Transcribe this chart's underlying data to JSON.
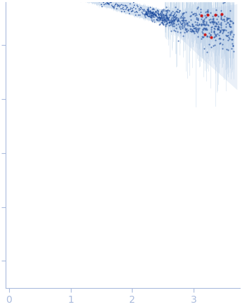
{
  "title": "",
  "background_color": "#ffffff",
  "point_color_blue": "#1a4a9e",
  "point_color_red": "#cc1111",
  "errorband_color": "#bad0e8",
  "spine_color": "#aabbdd",
  "tick_color": "#aabbdd",
  "figsize": [
    3.45,
    4.37
  ],
  "dpi": 100,
  "seed": 12345,
  "x_min": -0.05,
  "x_max": 3.75,
  "y_min": -4.5,
  "y_max": 0.8,
  "x_ticks": [
    0,
    1,
    2,
    3
  ],
  "y_ticks": [
    -4,
    -3,
    -2,
    -1,
    0
  ]
}
